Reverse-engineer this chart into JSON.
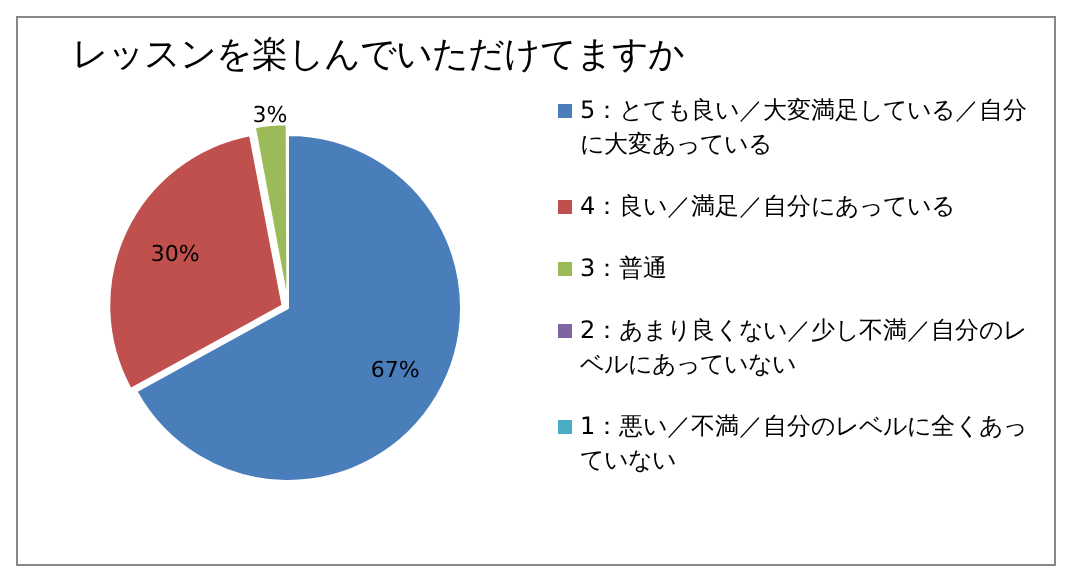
{
  "chart_data": {
    "type": "pie",
    "title": "レッスンを楽しんでいただけてますか",
    "categories": [
      "5：とても良い／大変満足している／自分に大変あっている",
      "4：良い／満足／自分にあっている",
      "3：普通",
      "2：あまり良くない／少し不満／自分のレベルにあっていない",
      "1：悪い／不満／自分のレベルに全くあっていない"
    ],
    "values": [
      67,
      30,
      3,
      0,
      0
    ],
    "value_labels": [
      "67%",
      "30%",
      "3%",
      null,
      null
    ],
    "colors": [
      "#4a7ebb",
      "#c0504d",
      "#9bbb59",
      "#8064a2",
      "#4bacc6"
    ],
    "legend": "right"
  }
}
